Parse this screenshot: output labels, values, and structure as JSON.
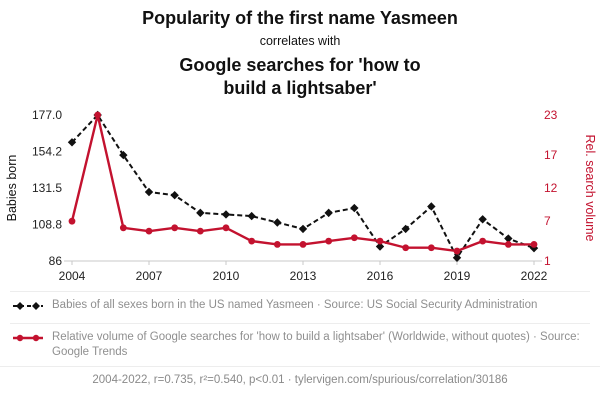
{
  "header": {
    "title": "Popularity of the first name Yasmeen",
    "subtitle": "correlates with",
    "title2": "Google searches for 'how to build a lightsaber'"
  },
  "colors": {
    "black_series": "#111111",
    "red_series": "#c3122f",
    "axis_line": "#c9c9c9",
    "muted_text": "#8f8f8f"
  },
  "chart_data": {
    "type": "line",
    "x": [
      2004,
      2005,
      2006,
      2007,
      2008,
      2009,
      2010,
      2011,
      2012,
      2013,
      2014,
      2015,
      2016,
      2017,
      2018,
      2019,
      2020,
      2021,
      2022
    ],
    "x_ticks": [
      2004,
      2007,
      2010,
      2013,
      2016,
      2019,
      2022
    ],
    "series": [
      {
        "name": "Babies of all sexes born in the US named Yasmeen",
        "axis": "left",
        "color": "#111111",
        "dash": true,
        "marker": "diamond",
        "values": [
          160,
          177,
          152,
          129,
          127,
          116,
          115,
          114,
          110,
          106,
          116,
          119,
          95,
          106,
          120,
          88,
          112,
          100,
          94
        ]
      },
      {
        "name": "Relative volume of Google searches for 'how to build a lightsaber'",
        "axis": "right",
        "color": "#c3122f",
        "dash": false,
        "marker": "circle",
        "values": [
          7,
          23,
          6,
          5.5,
          6,
          5.5,
          6,
          4,
          3.5,
          3.5,
          4,
          4.5,
          4,
          3,
          3,
          2.5,
          4,
          3.5,
          3.5
        ]
      }
    ],
    "left_axis": {
      "label": "Babies born",
      "min": 86,
      "max": 177,
      "ticks": [
        "177.0",
        "154.2",
        "131.5",
        "108.8",
        "86"
      ]
    },
    "right_axis": {
      "label": "Rel. search volume",
      "min": 1,
      "max": 23,
      "ticks": [
        "23",
        "17",
        "12",
        "7",
        "1"
      ]
    },
    "grid": false,
    "legend_position": "bottom"
  },
  "legend": [
    {
      "label": "Babies of all sexes born in the US named Yasmeen · Source: US Social Security Administration"
    },
    {
      "label": "Relative volume of Google searches for 'how to build a lightsaber' (Worldwide, without quotes) · Source: Google Trends"
    }
  ],
  "footer": {
    "text": "2004-2022, r=0.735, r²=0.540, p<0.01 · tylervigen.com/spurious/correlation/30186"
  }
}
